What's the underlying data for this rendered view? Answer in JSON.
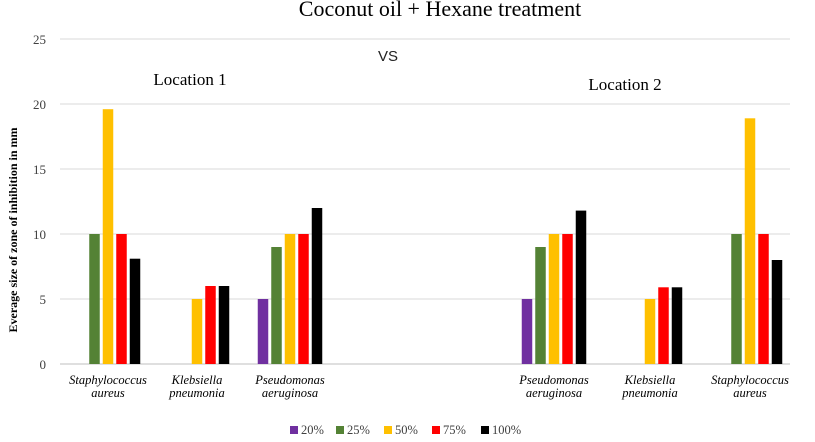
{
  "chart_data": {
    "type": "bar",
    "title": "Coconut oil  + Hexane treatment",
    "xlabel": "",
    "ylabel": "Everage size of zone of inhibition in mm",
    "ylim": [
      0,
      25
    ],
    "yticks": [
      0,
      5,
      10,
      15,
      20,
      25
    ],
    "grid": true,
    "legend_position": "bottom",
    "annotations": {
      "vs": "VS",
      "location1": "Location 1",
      "location2": "Location 2"
    },
    "categories": [
      [
        "Staphylococcus",
        "aureus"
      ],
      [
        "Klebsiella",
        "pneumonia"
      ],
      [
        "Pseudomonas",
        "aeruginosa"
      ],
      [
        "",
        ""
      ],
      [
        "Pseudomonas",
        "aeruginosa"
      ],
      [
        "Klebsiella",
        "pneumonia"
      ],
      [
        "Staphylococcus",
        "aureus"
      ]
    ],
    "series": [
      {
        "name": "20%",
        "color": "#7030A0",
        "values": [
          null,
          null,
          5,
          null,
          5,
          null,
          null
        ]
      },
      {
        "name": "25%",
        "color": "#548235",
        "values": [
          10,
          null,
          9,
          null,
          9,
          null,
          10
        ]
      },
      {
        "name": "50%",
        "color": "#FFC000",
        "values": [
          19.6,
          5,
          10,
          null,
          10,
          5,
          18.9
        ]
      },
      {
        "name": "75%",
        "color": "#FF0000",
        "values": [
          10,
          6,
          10,
          null,
          10,
          5.9,
          10
        ]
      },
      {
        "name": "100%",
        "color": "#000000",
        "values": [
          8.1,
          6,
          12,
          null,
          11.8,
          5.9,
          8
        ]
      }
    ]
  }
}
